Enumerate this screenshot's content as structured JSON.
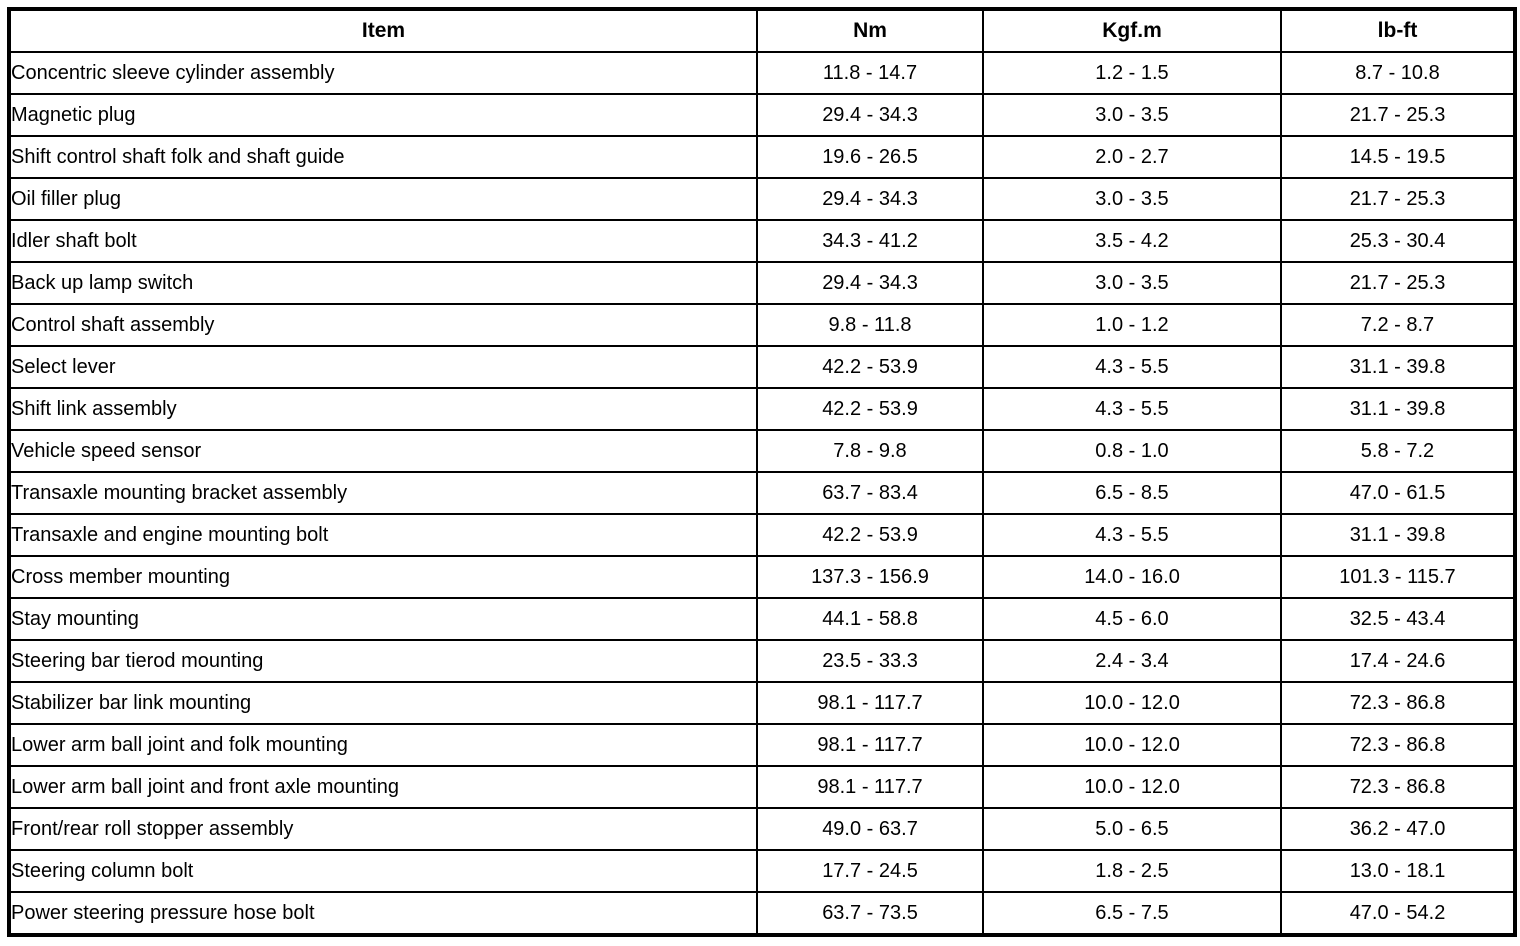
{
  "colors": {
    "border": "#000000",
    "background": "#ffffff",
    "text": "#000000"
  },
  "table": {
    "columns": [
      "Item",
      "Nm",
      "Kgf.m",
      "lb-ft"
    ],
    "rows": [
      [
        "Concentric sleeve cylinder assembly",
        "11.8 - 14.7",
        "1.2 - 1.5",
        "8.7 - 10.8"
      ],
      [
        "Magnetic plug",
        "29.4 - 34.3",
        "3.0 - 3.5",
        "21.7 - 25.3"
      ],
      [
        "Shift control shaft folk and shaft guide",
        "19.6 - 26.5",
        "2.0 - 2.7",
        "14.5 - 19.5"
      ],
      [
        "Oil filler plug",
        "29.4 - 34.3",
        "3.0 - 3.5",
        "21.7 - 25.3"
      ],
      [
        "Idler shaft bolt",
        "34.3 - 41.2",
        "3.5 - 4.2",
        "25.3 - 30.4"
      ],
      [
        "Back up lamp switch",
        "29.4 - 34.3",
        "3.0 - 3.5",
        "21.7 - 25.3"
      ],
      [
        "Control shaft assembly",
        "9.8 - 11.8",
        "1.0 - 1.2",
        "7.2 - 8.7"
      ],
      [
        "Select lever",
        "42.2 - 53.9",
        "4.3 - 5.5",
        "31.1 - 39.8"
      ],
      [
        "Shift link assembly",
        "42.2 - 53.9",
        "4.3 - 5.5",
        "31.1 - 39.8"
      ],
      [
        "Vehicle speed sensor",
        "7.8 - 9.8",
        "0.8 - 1.0",
        "5.8 - 7.2"
      ],
      [
        "Transaxle mounting bracket assembly",
        "63.7 - 83.4",
        "6.5 - 8.5",
        "47.0 - 61.5"
      ],
      [
        "Transaxle and engine mounting bolt",
        "42.2 - 53.9",
        "4.3 - 5.5",
        "31.1 - 39.8"
      ],
      [
        "Cross member mounting",
        "137.3 - 156.9",
        "14.0 - 16.0",
        "101.3 - 115.7"
      ],
      [
        "Stay mounting",
        "44.1 - 58.8",
        "4.5 - 6.0",
        "32.5 - 43.4"
      ],
      [
        "Steering bar tierod mounting",
        "23.5 - 33.3",
        "2.4 - 3.4",
        "17.4 - 24.6"
      ],
      [
        "Stabilizer bar link mounting",
        "98.1 - 117.7",
        "10.0 - 12.0",
        "72.3 - 86.8"
      ],
      [
        "Lower arm ball joint and folk mounting",
        "98.1 - 117.7",
        "10.0 - 12.0",
        "72.3 - 86.8"
      ],
      [
        "Lower arm ball joint and front axle mounting",
        "98.1 - 117.7",
        "10.0 - 12.0",
        "72.3 - 86.8"
      ],
      [
        "Front/rear roll stopper assembly",
        "49.0 - 63.7",
        "5.0 - 6.5",
        "36.2 - 47.0"
      ],
      [
        "Steering column bolt",
        "17.7 - 24.5",
        "1.8 - 2.5",
        "13.0 - 18.1"
      ],
      [
        "Power steering pressure hose bolt",
        "63.7 - 73.5",
        "6.5 - 7.5",
        "47.0 - 54.2"
      ]
    ]
  }
}
